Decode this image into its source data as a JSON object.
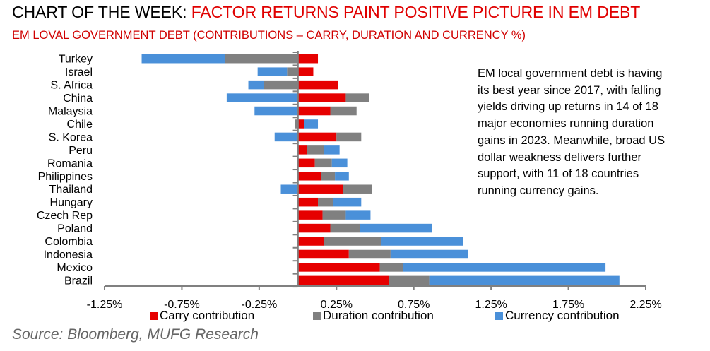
{
  "header": {
    "title_prefix": "CHART OF THE WEEK: ",
    "title_highlight": "FACTOR RETURNS PAINT POSITIVE PICTURE IN EM DEBT",
    "subtitle": "EM LOVAL GOVERNMENT DEBT (CONTRIBUTIONS – CARRY, DURATION AND CURRENCY %)"
  },
  "annotation": "EM local government debt is having its best year since 2017, with falling yields driving up returns in 14 of 18 major economies running duration gains in 2023. Meanwhile, broad US dollar weakness delivers further support, with 11 of 18 countries running currency gains.",
  "source": "Source: Bloomberg, MUFG Research",
  "colors": {
    "carry": "#e60000",
    "duration": "#808080",
    "currency": "#4a90d9",
    "axis": "#808080"
  },
  "chart_data": {
    "type": "bar",
    "orientation": "horizontal",
    "stacked": true,
    "title": "EM LOVAL GOVERNMENT DEBT (CONTRIBUTIONS – CARRY, DURATION AND CURRENCY %)",
    "xlabel": "",
    "ylabel": "",
    "xlim": [
      -1.25,
      2.25
    ],
    "x_ticks": [
      -1.25,
      -0.75,
      -0.25,
      0.25,
      0.75,
      1.25,
      1.75,
      2.25
    ],
    "x_tick_labels": [
      "-1.25%",
      "-0.75%",
      "-0.25%",
      "0.25%",
      "0.75%",
      "1.25%",
      "1.75%",
      "2.25%"
    ],
    "grid": false,
    "legend_position": "bottom",
    "categories": [
      "Turkey",
      "Israel",
      "S. Africa",
      "China",
      "Malaysia",
      "Chile",
      "S. Korea",
      "Peru",
      "Romania",
      "Philippines",
      "Thailand",
      "Hungary",
      "Czech Rep",
      "Poland",
      "Colombia",
      "Indonesia",
      "Mexico",
      "Brazil"
    ],
    "series": [
      {
        "name": "Carry contribution",
        "key": "carry",
        "values": [
          0.13,
          0.1,
          0.26,
          0.31,
          0.21,
          0.04,
          0.25,
          0.06,
          0.11,
          0.15,
          0.29,
          0.13,
          0.16,
          0.21,
          0.17,
          0.33,
          0.53,
          0.59
        ]
      },
      {
        "name": "Duration contribution",
        "key": "duration",
        "values": [
          -0.47,
          -0.07,
          -0.22,
          0.15,
          0.17,
          -0.02,
          0.16,
          0.11,
          0.11,
          0.09,
          0.19,
          0.1,
          0.15,
          0.19,
          0.37,
          0.27,
          0.15,
          0.26
        ]
      },
      {
        "name": "Currency contribution",
        "key": "currency",
        "values": [
          -0.54,
          -0.19,
          -0.1,
          -0.46,
          -0.28,
          0.09,
          -0.15,
          0.1,
          0.1,
          0.09,
          -0.11,
          0.18,
          0.16,
          0.47,
          0.53,
          0.5,
          1.31,
          1.23
        ]
      }
    ]
  }
}
